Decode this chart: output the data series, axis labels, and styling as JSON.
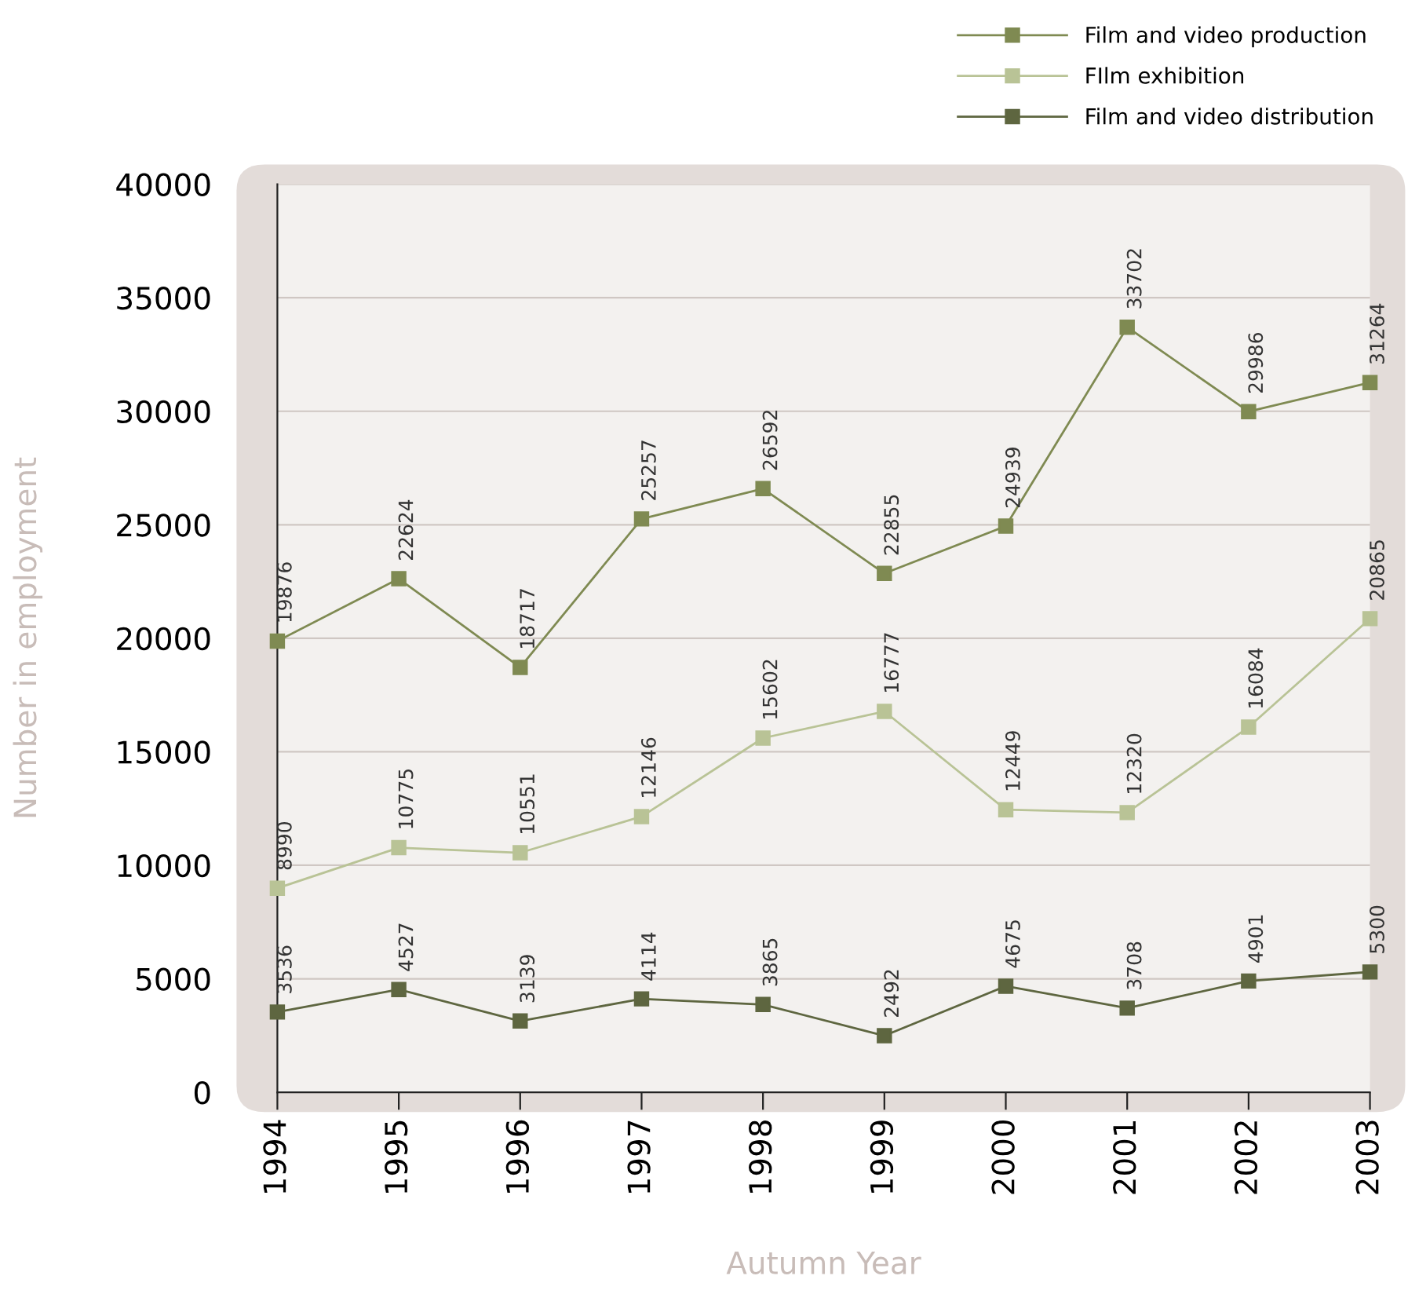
{
  "chart_data": {
    "type": "line",
    "xlabel": "Autumn Year",
    "ylabel": "Number in employment",
    "categories": [
      "1994",
      "1995",
      "1996",
      "1997",
      "1998",
      "1999",
      "2000",
      "2001",
      "2002",
      "2003"
    ],
    "series": [
      {
        "name": "Film and video production",
        "color": "#7f8a52",
        "values": [
          19876,
          22624,
          18717,
          25257,
          26592,
          22855,
          24939,
          33702,
          29986,
          31264
        ]
      },
      {
        "name": "FIlm exhibition",
        "color": "#b9c396",
        "values": [
          8990,
          10775,
          10551,
          12146,
          15602,
          16777,
          12449,
          12320,
          16084,
          20865
        ]
      },
      {
        "name": "Film and video distribution",
        "color": "#5e6640",
        "values": [
          3536,
          4527,
          3139,
          4114,
          3865,
          2492,
          4675,
          3708,
          4901,
          5300
        ]
      }
    ],
    "ylim": [
      0,
      40000
    ],
    "yticks": [
      0,
      5000,
      10000,
      15000,
      20000,
      25000,
      30000,
      35000,
      40000
    ],
    "grid": "y",
    "legend": "top right",
    "marker": "square",
    "line_style": "solid",
    "data_labels": true
  }
}
